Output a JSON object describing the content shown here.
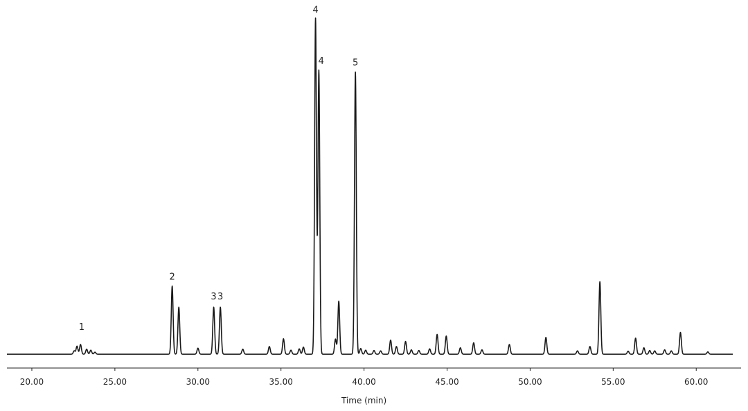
{
  "chart_data": {
    "type": "line",
    "title": "",
    "xlabel": "Time (min)",
    "ylabel": "",
    "xlim": [
      18.5,
      62.2
    ],
    "ylim": [
      0,
      100
    ],
    "grid": false,
    "x_ticks": [
      20,
      25,
      30,
      35,
      40,
      45,
      50,
      55,
      60
    ],
    "x_tick_labels": [
      "20.00",
      "25.00",
      "30.00",
      "35.00",
      "40.00",
      "45.00",
      "50.00",
      "55.00",
      "60.00"
    ],
    "baseline": 0.3,
    "peaks": [
      {
        "x": 22.55,
        "h": 1.0
      },
      {
        "x": 22.72,
        "h": 2.4
      },
      {
        "x": 22.93,
        "h": 2.9
      },
      {
        "x": 23.3,
        "h": 1.5
      },
      {
        "x": 23.55,
        "h": 1.2
      },
      {
        "x": 23.8,
        "h": 0.6
      },
      {
        "x": 28.45,
        "h": 20.3
      },
      {
        "x": 28.85,
        "h": 14.0
      },
      {
        "x": 30.0,
        "h": 1.8
      },
      {
        "x": 30.95,
        "h": 14.0
      },
      {
        "x": 31.35,
        "h": 14.0
      },
      {
        "x": 32.7,
        "h": 1.5
      },
      {
        "x": 34.3,
        "h": 2.3
      },
      {
        "x": 35.15,
        "h": 4.6
      },
      {
        "x": 35.6,
        "h": 1.2
      },
      {
        "x": 36.1,
        "h": 1.6
      },
      {
        "x": 36.35,
        "h": 2.1
      },
      {
        "x": 37.08,
        "h": 100.0
      },
      {
        "x": 37.28,
        "h": 84.5
      },
      {
        "x": 38.28,
        "h": 4.5
      },
      {
        "x": 38.48,
        "h": 15.8
      },
      {
        "x": 39.48,
        "h": 84.0
      },
      {
        "x": 39.8,
        "h": 1.7
      },
      {
        "x": 40.1,
        "h": 1.2
      },
      {
        "x": 40.6,
        "h": 1.1
      },
      {
        "x": 41.0,
        "h": 1.0
      },
      {
        "x": 41.6,
        "h": 4.2
      },
      {
        "x": 41.95,
        "h": 2.3
      },
      {
        "x": 42.5,
        "h": 3.8
      },
      {
        "x": 42.85,
        "h": 1.3
      },
      {
        "x": 43.3,
        "h": 1.1
      },
      {
        "x": 43.95,
        "h": 1.6
      },
      {
        "x": 44.4,
        "h": 5.9
      },
      {
        "x": 44.95,
        "h": 5.4
      },
      {
        "x": 45.8,
        "h": 1.9
      },
      {
        "x": 46.6,
        "h": 3.4
      },
      {
        "x": 47.1,
        "h": 1.3
      },
      {
        "x": 48.75,
        "h": 2.9
      },
      {
        "x": 50.95,
        "h": 5.0
      },
      {
        "x": 52.85,
        "h": 1.0
      },
      {
        "x": 53.6,
        "h": 2.3
      },
      {
        "x": 54.2,
        "h": 21.6
      },
      {
        "x": 55.9,
        "h": 0.9
      },
      {
        "x": 56.35,
        "h": 4.8
      },
      {
        "x": 56.85,
        "h": 1.9
      },
      {
        "x": 57.2,
        "h": 1.1
      },
      {
        "x": 57.5,
        "h": 1.0
      },
      {
        "x": 58.1,
        "h": 1.3
      },
      {
        "x": 58.5,
        "h": 1.0
      },
      {
        "x": 59.05,
        "h": 6.5
      },
      {
        "x": 60.7,
        "h": 0.7
      }
    ],
    "annotations": [
      {
        "text": "1",
        "x": 23.0,
        "y": 7.5
      },
      {
        "text": "2",
        "x": 28.45,
        "y": 22.5
      },
      {
        "text": "3",
        "x": 30.95,
        "y": 16.6
      },
      {
        "text": "3",
        "x": 31.35,
        "y": 16.6
      },
      {
        "text": "4",
        "x": 37.08,
        "y": 102.0
      },
      {
        "text": "4",
        "x": 37.42,
        "y": 86.8
      },
      {
        "text": "5",
        "x": 39.48,
        "y": 86.3
      }
    ]
  }
}
